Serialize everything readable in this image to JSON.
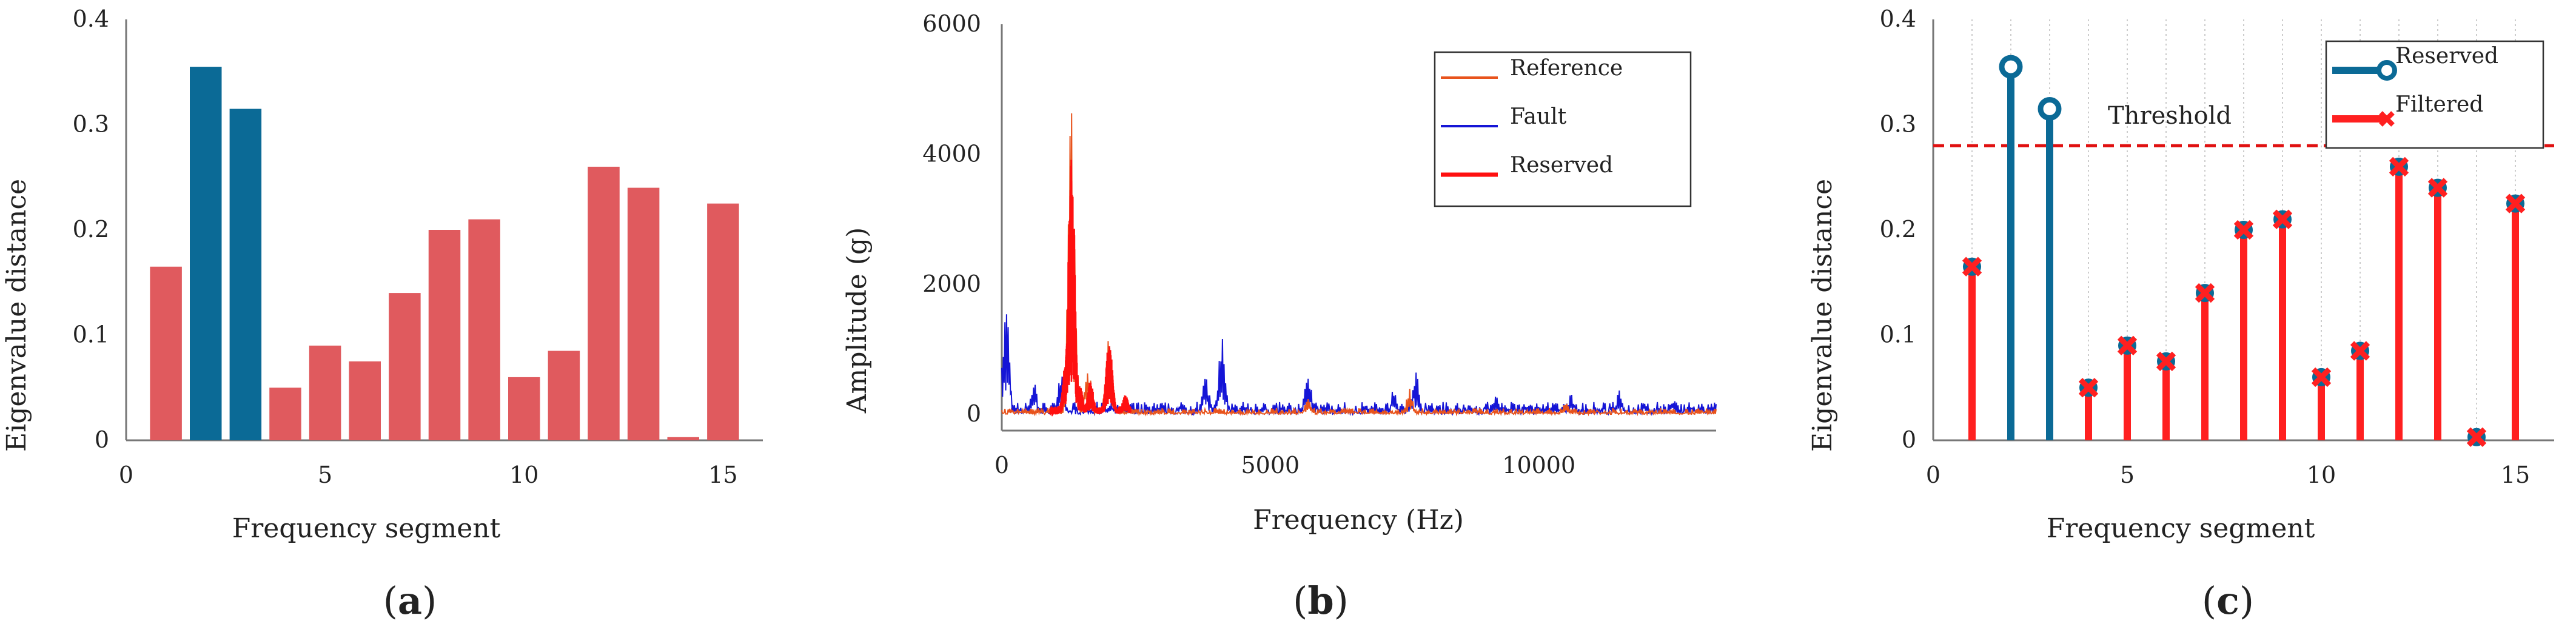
{
  "chart_data": [
    {
      "id": "a",
      "type": "bar",
      "panel_label": "a",
      "xlabel": "Frequency segment",
      "ylabel": "Eigenvalue distance",
      "xlim": [
        0,
        16
      ],
      "ylim": [
        0,
        0.4
      ],
      "xticks": [
        "0",
        "5",
        "10",
        "15"
      ],
      "xtick_values": [
        0,
        5,
        10,
        15
      ],
      "yticks": [
        "0",
        "0.1",
        "0.2",
        "0.3",
        "0.4"
      ],
      "ytick_values": [
        0,
        0.1,
        0.2,
        0.3,
        0.4
      ],
      "categories": [
        1,
        2,
        3,
        4,
        5,
        6,
        7,
        8,
        9,
        10,
        11,
        12,
        13,
        14,
        15
      ],
      "values": [
        0.165,
        0.355,
        0.315,
        0.05,
        0.09,
        0.075,
        0.14,
        0.2,
        0.21,
        0.06,
        0.085,
        0.26,
        0.24,
        0.003,
        0.225
      ],
      "reserved_indices": [
        2,
        3
      ],
      "colors": {
        "reserved": "#0b6a96",
        "filtered": "#e05a5e"
      }
    },
    {
      "id": "b",
      "type": "line",
      "panel_label": "b",
      "xlabel": "Frequency (Hz)",
      "ylabel": "Amplitude (g)",
      "xlim": [
        0,
        13300
      ],
      "ylim": [
        -250,
        6000
      ],
      "xticks": [
        "0",
        "5000",
        "10000"
      ],
      "xtick_values": [
        0,
        5000,
        10000
      ],
      "yticks": [
        "0",
        "2000",
        "4000",
        "6000"
      ],
      "ytick_values": [
        0,
        2000,
        4000,
        6000
      ],
      "legend_position": "top-right",
      "series": [
        {
          "name": "Reference",
          "color": "#e8531c",
          "peaks": [
            [
              1300,
              4950
            ],
            [
              1600,
              800
            ],
            [
              2000,
              1300
            ],
            [
              5700,
              250
            ],
            [
              7600,
              400
            ],
            [
              10500,
              200
            ]
          ],
          "baseline": 60
        },
        {
          "name": "Fault",
          "color": "#1515d6",
          "peaks": [
            [
              80,
              1800
            ],
            [
              600,
              500
            ],
            [
              1100,
              650
            ],
            [
              4100,
              1400
            ],
            [
              3800,
              650
            ],
            [
              5700,
              700
            ],
            [
              7700,
              750
            ],
            [
              7300,
              400
            ],
            [
              9200,
              300
            ],
            [
              10600,
              350
            ],
            [
              11500,
              400
            ],
            [
              12500,
              250
            ]
          ],
          "baseline": 120
        },
        {
          "name": "Reserved",
          "color": "#ff1010",
          "peaks": [
            [
              1300,
              4150
            ],
            [
              1200,
              900
            ],
            [
              1450,
              450
            ],
            [
              1650,
              500
            ],
            [
              2000,
              1150
            ],
            [
              2300,
              300
            ]
          ],
          "baseline": 80,
          "range": [
            900,
            2400
          ]
        }
      ]
    },
    {
      "id": "c",
      "type": "stem",
      "panel_label": "c",
      "xlabel": "Frequency segment",
      "ylabel": "Eigenvalue distance",
      "xlim": [
        0,
        16
      ],
      "ylim": [
        0,
        0.4
      ],
      "xticks": [
        "0",
        "5",
        "10",
        "15"
      ],
      "xtick_values": [
        0,
        5,
        10,
        15
      ],
      "yticks": [
        "0",
        "0.1",
        "0.2",
        "0.3",
        "0.4"
      ],
      "ytick_values": [
        0,
        0.1,
        0.2,
        0.3,
        0.4
      ],
      "categories": [
        1,
        2,
        3,
        4,
        5,
        6,
        7,
        8,
        9,
        10,
        11,
        12,
        13,
        14,
        15
      ],
      "values": [
        0.165,
        0.355,
        0.315,
        0.05,
        0.09,
        0.075,
        0.14,
        0.2,
        0.21,
        0.06,
        0.085,
        0.26,
        0.24,
        0.003,
        0.225
      ],
      "threshold": 0.28,
      "threshold_label": "Threshold",
      "reserved_indices": [
        2,
        3
      ],
      "legend_position": "top-right",
      "legend": [
        "Reserved",
        "Filtered"
      ],
      "colors": {
        "reserved": "#0b6a96",
        "filtered": "#ff2020",
        "threshold": "#e01010"
      }
    }
  ]
}
